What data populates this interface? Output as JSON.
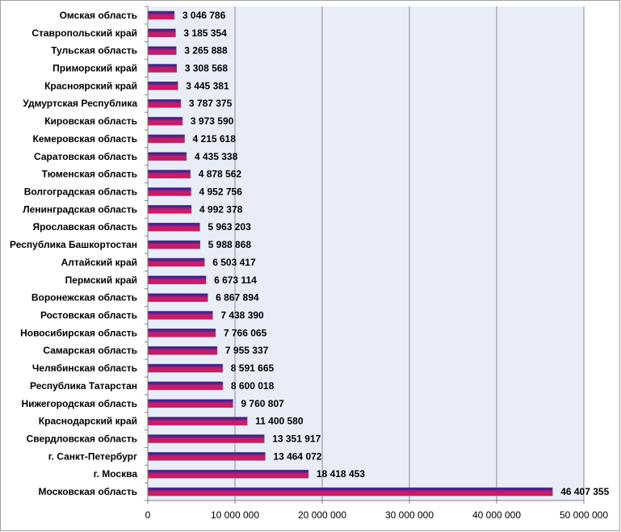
{
  "chart_data": {
    "type": "bar",
    "orientation": "horizontal",
    "categories": [
      "Омская область",
      "Ставропольский край",
      "Тульская область",
      "Приморский край",
      "Красноярский край",
      "Удмуртская Республика",
      "Кировская область",
      "Кемеровская область",
      "Саратовская область",
      "Тюменская область",
      "Волгоградская область",
      "Ленинградская область",
      "Ярославская область",
      "Республика Башкортостан",
      "Алтайский край",
      "Пермский край",
      "Воронежская область",
      "Ростовская область",
      "Новосибирская область",
      "Самарская область",
      "Челябинская область",
      "Республика Татарстан",
      "Нижегородская область",
      "Краснодарский край",
      "Свердловская область",
      "г. Санкт-Петербург",
      "г. Москва",
      "Московская область"
    ],
    "values": [
      3046786,
      3185354,
      3265888,
      3308568,
      3445381,
      3787375,
      3973590,
      4215618,
      4435338,
      4878562,
      4952756,
      4992378,
      5963203,
      5988868,
      6503417,
      6673114,
      6867894,
      7438390,
      7766065,
      7955337,
      8591665,
      8600018,
      9760807,
      11400580,
      13351917,
      13464072,
      18418453,
      46407355
    ],
    "value_labels": [
      "3 046 786",
      "3 185 354",
      "3 265 888",
      "3 308 568",
      "3 445 381",
      "3 787 375",
      "3 973 590",
      "4 215 618",
      "4 435 338",
      "4 878 562",
      "4 952 756",
      "4 992 378",
      "5 963 203",
      "5 988 868",
      "6 503 417",
      "6 673 114",
      "6 867 894",
      "7 438 390",
      "7 766 065",
      "7 955 337",
      "8 591 665",
      "8 600 018",
      "9 760 807",
      "11 400 580",
      "13 351 917",
      "13 464 072",
      "18 418 453",
      "46 407 355"
    ],
    "xlim": [
      0,
      50000000
    ],
    "x_ticks": [
      0,
      10000000,
      20000000,
      30000000,
      40000000,
      50000000
    ],
    "x_tick_labels": [
      "0",
      "10 000 000",
      "20 000 000",
      "30 000 000",
      "40 000 000",
      "50 000 000"
    ],
    "grid": "vertical",
    "legend": "none",
    "colors": {
      "plot_background": "#e8edf7",
      "gridline": "#8c8c8c",
      "bar_top": "#1a1a9e",
      "bar_bottom": "#e0105a",
      "axis": "#808080",
      "border": "#a0a0a0"
    }
  }
}
